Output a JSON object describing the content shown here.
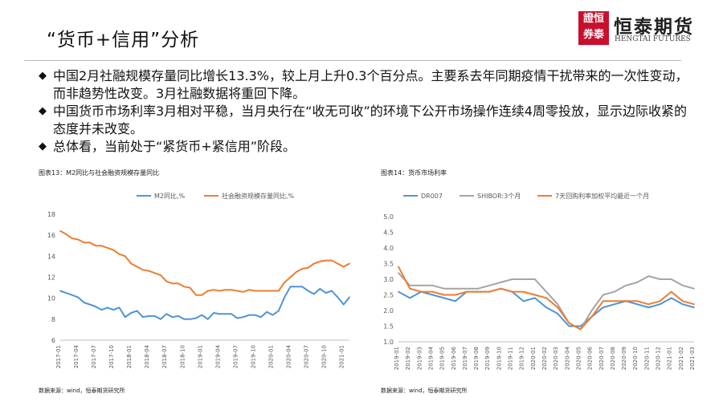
{
  "title": "“货币+信用”分析",
  "logo": {
    "seal": "證恒券泰",
    "name_cn": "恒泰期货",
    "name_en": "HENGTAI FUTURES"
  },
  "bullets": [
    "中国2月社融规模存量同比增长13.3%，较上月上升0.3个百分点。主要系去年同期疫情干扰带来的一次性变动，而非趋势性改变。3月社融数据将重回下降。",
    "中国货币市场利率3月相对平稳，当月央行在“收无可收”的环境下公开市场操作连续4周零投放，显示边际收紧的态度并未改变。",
    "总体看，当前处于“紧货币+紧信用”阶段。"
  ],
  "bullet_mark": "◆",
  "colors": {
    "blue": "#4f94d6",
    "orange": "#ed7d31",
    "gray": "#a5a5a5"
  },
  "chart_data": [
    {
      "type": "line",
      "title": "图表13：M2同比与社会融资规模存量同比",
      "source": "数据来源：wind，恒泰期货研究所",
      "ylim": [
        6,
        18
      ],
      "yticks": [
        6,
        8,
        10,
        12,
        14,
        16,
        18
      ],
      "grid": false,
      "legend_position": "top",
      "x": [
        "2017-01",
        "2017-02",
        "2017-03",
        "2017-04",
        "2017-05",
        "2017-06",
        "2017-07",
        "2017-08",
        "2017-09",
        "2017-10",
        "2017-11",
        "2017-12",
        "2018-01",
        "2018-02",
        "2018-03",
        "2018-04",
        "2018-05",
        "2018-06",
        "2018-07",
        "2018-08",
        "2018-09",
        "2018-10",
        "2018-11",
        "2018-12",
        "2019-01",
        "2019-02",
        "2019-03",
        "2019-04",
        "2019-05",
        "2019-06",
        "2019-07",
        "2019-08",
        "2019-09",
        "2019-10",
        "2019-11",
        "2019-12",
        "2020-01",
        "2020-02",
        "2020-03",
        "2020-04",
        "2020-05",
        "2020-06",
        "2020-07",
        "2020-08",
        "2020-09",
        "2020-10",
        "2020-11",
        "2020-12",
        "2021-01",
        "2021-02"
      ],
      "xticks": [
        "2017-01",
        "2017-04",
        "2017-07",
        "2017-10",
        "2018-01",
        "2018-04",
        "2018-07",
        "2018-10",
        "2019-01",
        "2019-04",
        "2019-07",
        "2019-10",
        "2020-01",
        "2020-04",
        "2020-07",
        "2020-10",
        "2021-01"
      ],
      "series": [
        {
          "name": "M2同比,%",
          "color": "#4f94d6",
          "values": [
            10.7,
            10.5,
            10.3,
            10.1,
            9.6,
            9.4,
            9.2,
            8.9,
            9.1,
            8.9,
            9.1,
            8.2,
            8.6,
            8.8,
            8.2,
            8.3,
            8.3,
            8.0,
            8.5,
            8.2,
            8.3,
            8.0,
            8.0,
            8.1,
            8.4,
            8.0,
            8.6,
            8.5,
            8.5,
            8.5,
            8.1,
            8.2,
            8.4,
            8.4,
            8.2,
            8.7,
            8.4,
            8.8,
            10.1,
            11.1,
            11.1,
            11.1,
            10.7,
            10.4,
            10.9,
            10.5,
            10.7,
            10.1,
            9.4,
            10.1
          ]
        },
        {
          "name": "社会融资规模存量同比,%",
          "color": "#ed7d31",
          "values": [
            16.4,
            16.1,
            15.7,
            15.6,
            15.3,
            15.3,
            15.0,
            15.0,
            14.8,
            14.6,
            14.2,
            14.0,
            13.3,
            13.0,
            12.7,
            12.6,
            12.4,
            12.2,
            11.6,
            11.4,
            11.4,
            11.1,
            11.0,
            10.3,
            10.3,
            10.7,
            10.8,
            10.7,
            10.8,
            10.8,
            10.7,
            10.6,
            10.8,
            10.7,
            10.7,
            10.7,
            10.7,
            10.7,
            11.5,
            12.0,
            12.5,
            12.8,
            12.9,
            13.3,
            13.5,
            13.6,
            13.6,
            13.3,
            13.0,
            13.3
          ]
        }
      ]
    },
    {
      "type": "line",
      "title": "图表14：货币市场利率",
      "source": "数据来源：wind，恒泰期货研究所",
      "ylim": [
        1.0,
        5.0
      ],
      "yticks": [
        "1.0",
        "1.5",
        "2.0",
        "2.5",
        "3.0",
        "3.5",
        "4.0",
        "4.5",
        "5.0"
      ],
      "grid": false,
      "legend_position": "top",
      "x": [
        "2019-01",
        "2019-02",
        "2019-03",
        "2019-04",
        "2019-05",
        "2019-06",
        "2019-07",
        "2019-08",
        "2019-09",
        "2019-10",
        "2019-11",
        "2019-12",
        "2020-01",
        "2020-02",
        "2020-03",
        "2020-04",
        "2020-05",
        "2020-06",
        "2020-07",
        "2020-08",
        "2020-09",
        "2020-10",
        "2020-11",
        "2020-12",
        "2021-01",
        "2021-02",
        "2021-03"
      ],
      "series": [
        {
          "name": "DR007",
          "color": "#4f94d6",
          "values": [
            2.6,
            2.4,
            2.6,
            2.5,
            2.4,
            2.3,
            2.6,
            2.6,
            2.6,
            2.7,
            2.6,
            2.3,
            2.4,
            2.1,
            1.9,
            1.5,
            1.5,
            1.8,
            2.1,
            2.2,
            2.3,
            2.2,
            2.1,
            2.2,
            2.4,
            2.2,
            2.1
          ]
        },
        {
          "name": "SHIBOR:3个月",
          "color": "#a5a5a5",
          "values": [
            3.2,
            2.8,
            2.8,
            2.8,
            2.7,
            2.7,
            2.7,
            2.7,
            2.8,
            2.9,
            3.0,
            3.0,
            3.0,
            2.6,
            2.2,
            1.6,
            1.4,
            2.0,
            2.5,
            2.6,
            2.8,
            2.9,
            3.1,
            3.0,
            3.0,
            2.8,
            2.7
          ]
        },
        {
          "name": "7天回购利率加权平均最近一个月",
          "color": "#ed7d31",
          "values": [
            3.4,
            2.7,
            2.6,
            2.6,
            2.5,
            2.5,
            2.6,
            2.6,
            2.6,
            2.7,
            2.6,
            2.6,
            2.5,
            2.4,
            2.1,
            1.6,
            1.4,
            1.8,
            2.3,
            2.3,
            2.3,
            2.3,
            2.2,
            2.3,
            2.6,
            2.3,
            2.2
          ]
        }
      ]
    }
  ]
}
